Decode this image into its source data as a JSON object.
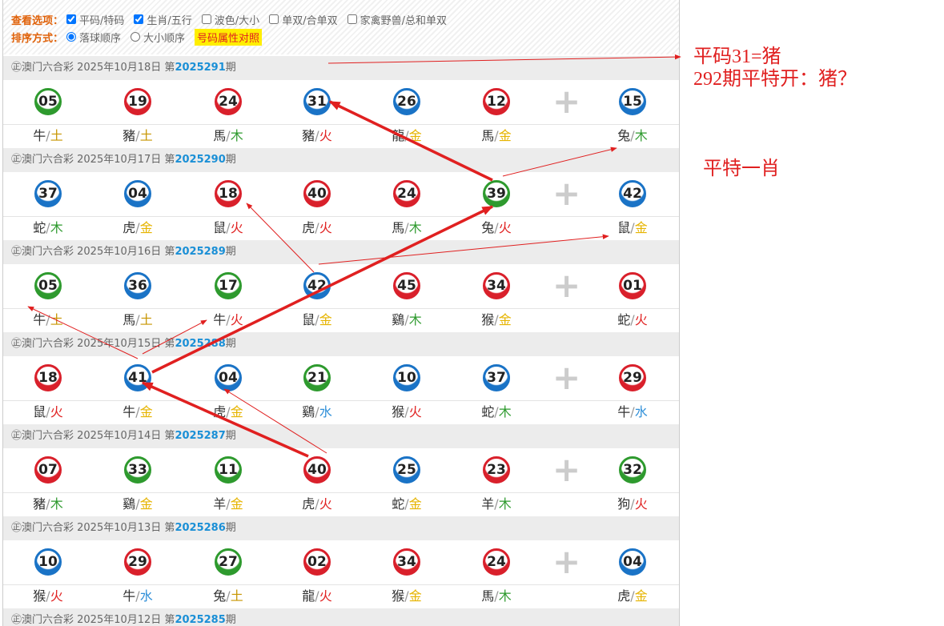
{
  "options": {
    "view_label": "查看选项：",
    "view_items": [
      {
        "label": "平码/特码",
        "checked": true
      },
      {
        "label": "生肖/五行",
        "checked": true
      },
      {
        "label": "波色/大小",
        "checked": false
      },
      {
        "label": "单双/合单双",
        "checked": false
      },
      {
        "label": "家禽野兽/总和单双",
        "checked": false
      }
    ],
    "sort_label": "排序方式：",
    "sort_items": [
      {
        "label": "落球顺序",
        "checked": true
      },
      {
        "label": "大小顺序",
        "checked": false
      }
    ],
    "button": "号码属性对照"
  },
  "ball_colors": {
    "red": "#d9202b",
    "blue": "#1a73c6",
    "green": "#2e9a2e"
  },
  "element_colors": {
    "金": "#e6b400",
    "木": "#2e9a2e",
    "水": "#2f8fd8",
    "火": "#e02020",
    "土": "#c79500"
  },
  "draws": [
    {
      "prefix": "㊣澳门六合彩 2025年10月18日 第",
      "issue": "2025291",
      "suffix": "期",
      "balls": [
        {
          "number": "05",
          "color": "green",
          "zodiac": "牛",
          "element": "土"
        },
        {
          "number": "19",
          "color": "red",
          "zodiac": "豬",
          "element": "土"
        },
        {
          "number": "24",
          "color": "red",
          "zodiac": "馬",
          "element": "木"
        },
        {
          "number": "31",
          "color": "blue",
          "zodiac": "豬",
          "element": "火"
        },
        {
          "number": "26",
          "color": "blue",
          "zodiac": "龍",
          "element": "金"
        },
        {
          "number": "12",
          "color": "red",
          "zodiac": "馬",
          "element": "金"
        },
        {
          "number": "15",
          "color": "blue",
          "zodiac": "兔",
          "element": "木"
        }
      ]
    },
    {
      "prefix": "㊣澳门六合彩 2025年10月17日 第",
      "issue": "2025290",
      "suffix": "期",
      "balls": [
        {
          "number": "37",
          "color": "blue",
          "zodiac": "蛇",
          "element": "木"
        },
        {
          "number": "04",
          "color": "blue",
          "zodiac": "虎",
          "element": "金"
        },
        {
          "number": "18",
          "color": "red",
          "zodiac": "鼠",
          "element": "火"
        },
        {
          "number": "40",
          "color": "red",
          "zodiac": "虎",
          "element": "火"
        },
        {
          "number": "24",
          "color": "red",
          "zodiac": "馬",
          "element": "木"
        },
        {
          "number": "39",
          "color": "green",
          "zodiac": "兔",
          "element": "火"
        },
        {
          "number": "42",
          "color": "blue",
          "zodiac": "鼠",
          "element": "金"
        }
      ]
    },
    {
      "prefix": "㊣澳门六合彩 2025年10月16日 第",
      "issue": "2025289",
      "suffix": "期",
      "balls": [
        {
          "number": "05",
          "color": "green",
          "zodiac": "牛",
          "element": "土"
        },
        {
          "number": "36",
          "color": "blue",
          "zodiac": "馬",
          "element": "土"
        },
        {
          "number": "17",
          "color": "green",
          "zodiac": "牛",
          "element": "火"
        },
        {
          "number": "42",
          "color": "blue",
          "zodiac": "鼠",
          "element": "金"
        },
        {
          "number": "45",
          "color": "red",
          "zodiac": "鷄",
          "element": "木"
        },
        {
          "number": "34",
          "color": "red",
          "zodiac": "猴",
          "element": "金"
        },
        {
          "number": "01",
          "color": "red",
          "zodiac": "蛇",
          "element": "火"
        }
      ]
    },
    {
      "prefix": "㊣澳门六合彩 2025年10月15日 第",
      "issue": "2025288",
      "suffix": "期",
      "balls": [
        {
          "number": "18",
          "color": "red",
          "zodiac": "鼠",
          "element": "火"
        },
        {
          "number": "41",
          "color": "blue",
          "zodiac": "牛",
          "element": "金"
        },
        {
          "number": "04",
          "color": "blue",
          "zodiac": "虎",
          "element": "金"
        },
        {
          "number": "21",
          "color": "green",
          "zodiac": "鷄",
          "element": "水"
        },
        {
          "number": "10",
          "color": "blue",
          "zodiac": "猴",
          "element": "火"
        },
        {
          "number": "37",
          "color": "blue",
          "zodiac": "蛇",
          "element": "木"
        },
        {
          "number": "29",
          "color": "red",
          "zodiac": "牛",
          "element": "水"
        }
      ]
    },
    {
      "prefix": "㊣澳门六合彩 2025年10月14日 第",
      "issue": "2025287",
      "suffix": "期",
      "balls": [
        {
          "number": "07",
          "color": "red",
          "zodiac": "豬",
          "element": "木"
        },
        {
          "number": "33",
          "color": "green",
          "zodiac": "鷄",
          "element": "金"
        },
        {
          "number": "11",
          "color": "green",
          "zodiac": "羊",
          "element": "金"
        },
        {
          "number": "40",
          "color": "red",
          "zodiac": "虎",
          "element": "火"
        },
        {
          "number": "25",
          "color": "blue",
          "zodiac": "蛇",
          "element": "金"
        },
        {
          "number": "23",
          "color": "red",
          "zodiac": "羊",
          "element": "木"
        },
        {
          "number": "32",
          "color": "green",
          "zodiac": "狗",
          "element": "火"
        }
      ]
    },
    {
      "prefix": "㊣澳门六合彩 2025年10月13日 第",
      "issue": "2025286",
      "suffix": "期",
      "balls": [
        {
          "number": "10",
          "color": "blue",
          "zodiac": "猴",
          "element": "火"
        },
        {
          "number": "29",
          "color": "red",
          "zodiac": "牛",
          "element": "水"
        },
        {
          "number": "27",
          "color": "green",
          "zodiac": "兔",
          "element": "土"
        },
        {
          "number": "02",
          "color": "red",
          "zodiac": "龍",
          "element": "火"
        },
        {
          "number": "34",
          "color": "red",
          "zodiac": "猴",
          "element": "金"
        },
        {
          "number": "24",
          "color": "red",
          "zodiac": "馬",
          "element": "木"
        },
        {
          "number": "04",
          "color": "blue",
          "zodiac": "虎",
          "element": "金"
        }
      ]
    },
    {
      "prefix": "㊣澳门六合彩 2025年10月12日 第",
      "issue": "2025285",
      "suffix": "期",
      "balls": []
    }
  ],
  "annotations": {
    "line1": "平码31=猪",
    "line2": "292期平特开：猪？",
    "line3": "平特一肖"
  }
}
